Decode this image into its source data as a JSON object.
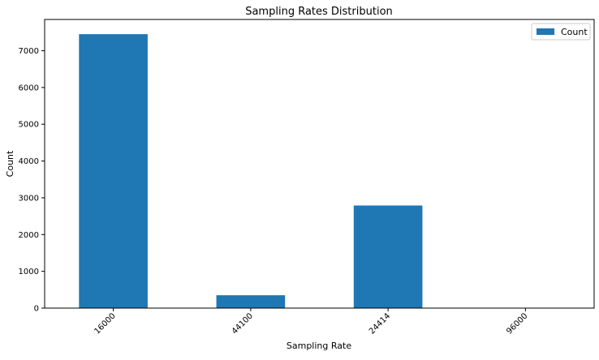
{
  "chart_data": {
    "type": "bar",
    "title": "Sampling Rates Distribution",
    "xlabel": "Sampling Rate",
    "ylabel": "Count",
    "categories": [
      "16000",
      "44100",
      "24414",
      "96000"
    ],
    "series": [
      {
        "name": "Count",
        "values": [
          7450,
          350,
          2790,
          5
        ],
        "color": "#1f77b4"
      }
    ],
    "ylim": [
      0,
      7850
    ],
    "yticks": [
      0,
      1000,
      2000,
      3000,
      4000,
      5000,
      6000,
      7000
    ],
    "x_tick_rotation_deg": 45,
    "grid": false,
    "legend_position": "top-right"
  }
}
